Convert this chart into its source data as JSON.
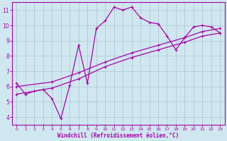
{
  "bg_color": "#cfe8f0",
  "grid_color": "#b0c8d8",
  "line_color": "#aa00aa",
  "xlabel": "Windchill (Refroidissement éolien,°C)",
  "xlim": [
    -0.5,
    23.5
  ],
  "ylim": [
    3.5,
    11.5
  ],
  "xticks": [
    0,
    1,
    2,
    3,
    4,
    5,
    6,
    7,
    8,
    9,
    10,
    11,
    12,
    13,
    14,
    15,
    16,
    17,
    18,
    19,
    20,
    21,
    22,
    23
  ],
  "yticks": [
    4,
    5,
    6,
    7,
    8,
    9,
    10,
    11
  ],
  "s1_x": [
    0,
    1,
    2,
    3,
    4,
    5,
    6,
    7,
    8,
    9,
    10,
    11,
    12,
    13,
    14,
    15,
    16,
    17,
    18,
    19,
    20,
    21,
    22,
    23
  ],
  "s1_y": [
    6.2,
    5.5,
    5.7,
    5.8,
    5.2,
    3.9,
    6.1,
    8.7,
    6.2,
    9.8,
    10.3,
    11.2,
    11.0,
    11.2,
    10.5,
    10.2,
    10.1,
    9.3,
    8.4,
    9.2,
    9.9,
    10.0,
    9.9,
    9.5
  ],
  "s2_x": [
    0,
    4,
    7,
    10,
    13,
    16,
    19,
    21,
    23
  ],
  "s2_y": [
    5.5,
    5.9,
    6.5,
    7.3,
    7.9,
    8.4,
    8.9,
    9.3,
    9.5
  ],
  "s3_x": [
    0,
    4,
    7,
    10,
    13,
    16,
    19,
    21,
    23
  ],
  "s3_y": [
    6.0,
    6.3,
    6.9,
    7.6,
    8.2,
    8.7,
    9.2,
    9.6,
    9.8
  ]
}
